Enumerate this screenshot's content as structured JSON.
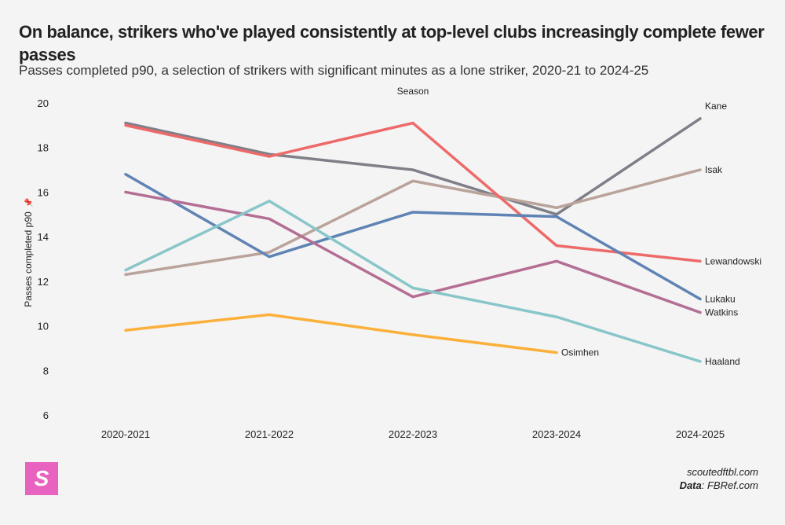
{
  "chart_data": {
    "type": "line",
    "title": "On balance, strikers who've played consistently at top-level clubs increasingly complete fewer passes",
    "subtitle": "Passes completed p90, a selection of strikers with significant minutes as a lone striker, 2020-21 to 2024-25",
    "xlabel": "Season",
    "ylabel": "Passes completed p90",
    "categories": [
      "2020-2021",
      "2021-2022",
      "2022-2023",
      "2023-2024",
      "2024-2025"
    ],
    "ylim": [
      6,
      20
    ],
    "yticks": [
      6,
      8,
      10,
      12,
      14,
      16,
      18,
      20
    ],
    "grid": false,
    "legend": "direct labels at line ends",
    "series": [
      {
        "name": "Kane",
        "color": "#7f7f89",
        "values": [
          19.1,
          17.7,
          17.0,
          15.0,
          19.3
        ]
      },
      {
        "name": "Isak",
        "color": "#b9a39a",
        "values": [
          12.3,
          13.3,
          16.5,
          15.3,
          17.0
        ]
      },
      {
        "name": "Lewandowski",
        "color": "#ee6a6a",
        "values": [
          19.0,
          17.6,
          19.1,
          13.6,
          12.9
        ]
      },
      {
        "name": "Lukaku",
        "color": "#5f83b4",
        "values": [
          16.8,
          13.1,
          15.1,
          14.9,
          11.2
        ]
      },
      {
        "name": "Watkins",
        "color": "#b46e94",
        "values": [
          16.0,
          14.8,
          11.3,
          12.9,
          10.6
        ]
      },
      {
        "name": "Haaland",
        "color": "#89c6c9",
        "values": [
          12.5,
          15.6,
          11.7,
          10.4,
          8.4
        ]
      },
      {
        "name": "Osimhen",
        "color": "#fbb03b",
        "values": [
          9.8,
          10.5,
          9.6,
          8.8,
          null
        ]
      }
    ]
  },
  "branding": {
    "logo_letter": "S",
    "logo_color": "#e862bf",
    "site": "scoutedftbl.com",
    "data_label": "Data",
    "data_source": ": FBRef.com"
  },
  "icons": {
    "ylabel_icon": "pin-icon"
  }
}
